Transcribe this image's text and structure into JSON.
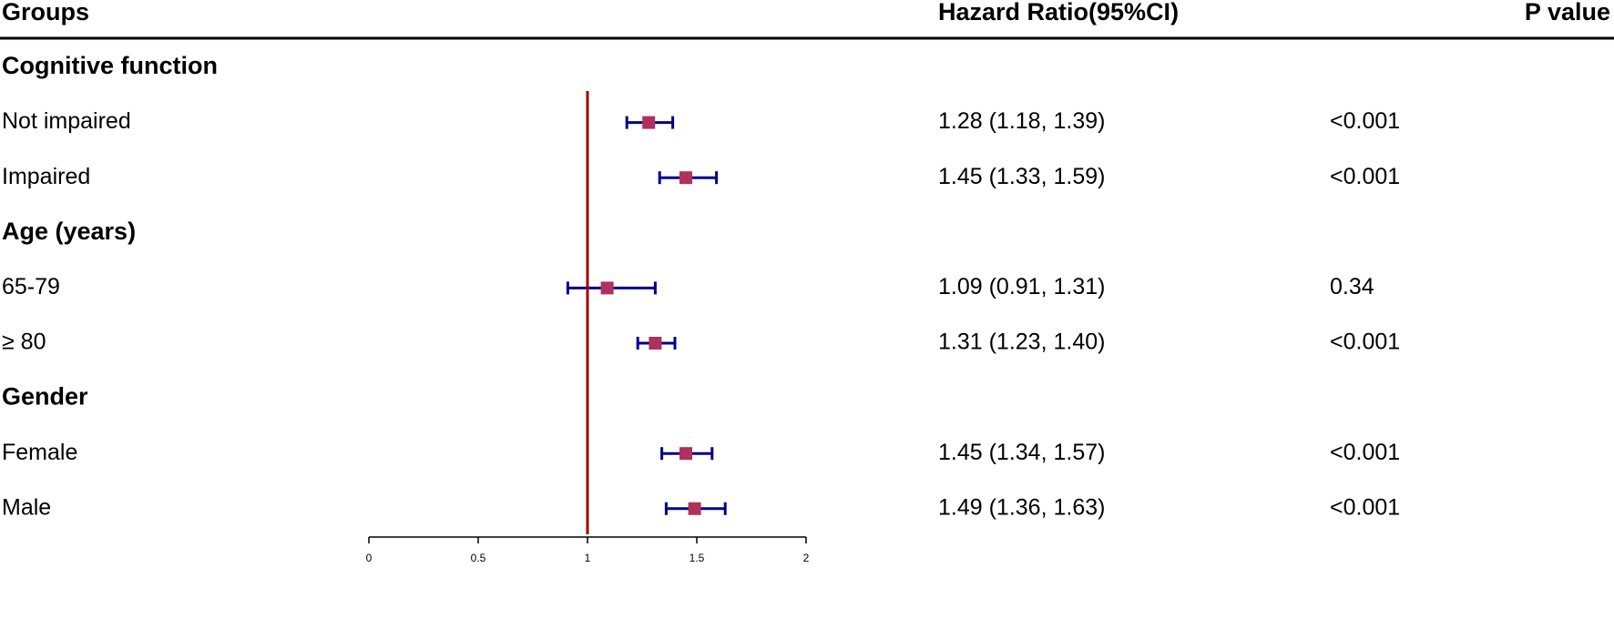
{
  "chart_data": {
    "type": "forest",
    "headers": {
      "groups": "Groups",
      "estimate": "Hazard Ratio(95%CI)",
      "p": "P value"
    },
    "sections": [
      {
        "name": "Cognitive function",
        "categories": [
          "Not impaired",
          "Impaired"
        ],
        "values": [
          1.28,
          1.45
        ],
        "lower": [
          1.18,
          1.33
        ],
        "upper": [
          1.39,
          1.59
        ],
        "value_labels": [
          "1.28 (1.18, 1.39)",
          "1.45 (1.33, 1.59)"
        ],
        "p_values": [
          "<0.001",
          "<0.001"
        ]
      },
      {
        "name": "Age (years)",
        "categories": [
          "65-79",
          "≥ 80"
        ],
        "values": [
          1.09,
          1.31
        ],
        "lower": [
          0.91,
          1.23
        ],
        "upper": [
          1.31,
          1.4
        ],
        "value_labels": [
          "1.09 (0.91, 1.31)",
          "1.31 (1.23, 1.40)"
        ],
        "p_values": [
          "0.34",
          "<0.001"
        ]
      },
      {
        "name": "Gender",
        "categories": [
          "Female",
          "Male"
        ],
        "values": [
          1.45,
          1.49
        ],
        "lower": [
          1.34,
          1.36
        ],
        "upper": [
          1.57,
          1.63
        ],
        "value_labels": [
          "1.45 (1.34, 1.57)",
          "1.49 (1.36, 1.63)"
        ],
        "p_values": [
          "<0.001",
          "<0.001"
        ]
      }
    ],
    "xlim": [
      0,
      2
    ],
    "xticks": [
      0,
      0.5,
      1,
      1.5,
      2
    ],
    "reference_line": 1,
    "marker_color": "#b0305e",
    "whisker_color": "#00008b",
    "reference_color": "#a00000"
  }
}
